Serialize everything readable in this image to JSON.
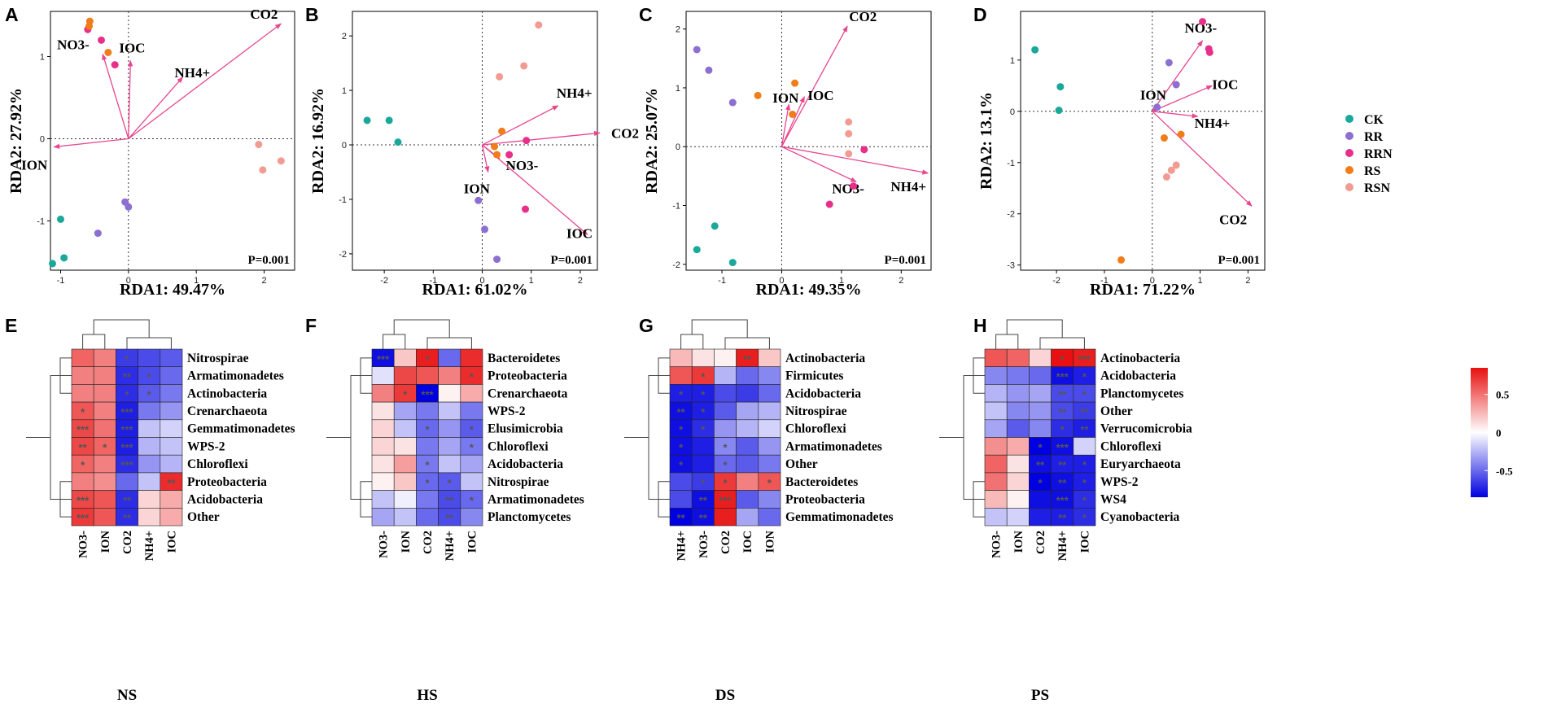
{
  "chart_data": [
    {
      "panel": "A",
      "type": "scatter",
      "xlabel": "RDA1: 49.47%",
      "ylabel": "RDA2: 27.92%",
      "xlim": [
        -1.15,
        2.45
      ],
      "ylim": [
        -1.6,
        1.55
      ],
      "xticks": [
        -1,
        0,
        1,
        2
      ],
      "yticks": [
        -1,
        0,
        1
      ],
      "annotation": "P=0.001",
      "vectors": [
        {
          "name": "CO2",
          "x": 2.25,
          "y": 1.4
        },
        {
          "name": "NH4+",
          "x": 0.8,
          "y": 0.75
        },
        {
          "name": "NO3-",
          "x": -0.38,
          "y": 1.03
        },
        {
          "name": "IOC",
          "x": 0.03,
          "y": 0.95
        },
        {
          "name": "ION",
          "x": -1.1,
          "y": -0.1
        }
      ],
      "points": [
        {
          "group": "CK",
          "x": -1.0,
          "y": -0.98
        },
        {
          "group": "CK",
          "x": -0.95,
          "y": -1.45
        },
        {
          "group": "CK",
          "x": -1.12,
          "y": -1.52
        },
        {
          "group": "RR",
          "x": -0.45,
          "y": -1.15
        },
        {
          "group": "RR",
          "x": -0.05,
          "y": -0.77
        },
        {
          "group": "RR",
          "x": 0.0,
          "y": -0.83
        },
        {
          "group": "RRN",
          "x": -0.2,
          "y": 0.9
        },
        {
          "group": "RRN",
          "x": -0.6,
          "y": 1.33
        },
        {
          "group": "RRN",
          "x": -0.4,
          "y": 1.2
        },
        {
          "group": "RS",
          "x": -0.57,
          "y": 1.43
        },
        {
          "group": "RS",
          "x": -0.58,
          "y": 1.37
        },
        {
          "group": "RS",
          "x": -0.3,
          "y": 1.05
        },
        {
          "group": "RSN",
          "x": 1.92,
          "y": -0.07
        },
        {
          "group": "RSN",
          "x": 1.98,
          "y": -0.38
        },
        {
          "group": "RSN",
          "x": 2.25,
          "y": -0.27
        }
      ]
    },
    {
      "panel": "B",
      "type": "scatter",
      "xlabel": "RDA1: 61.02%",
      "ylabel": "RDA2: 16.92%",
      "xlim": [
        -2.65,
        2.35
      ],
      "ylim": [
        -2.3,
        2.45
      ],
      "xticks": [
        -2,
        -1,
        0,
        1,
        2
      ],
      "yticks": [
        -2,
        -1,
        0,
        1,
        2
      ],
      "annotation": "P=0.001",
      "vectors": [
        {
          "name": "NH4+",
          "x": 1.55,
          "y": 0.72
        },
        {
          "name": "CO2",
          "x": 2.4,
          "y": 0.22
        },
        {
          "name": "NO3-",
          "x": 0.35,
          "y": -0.25
        },
        {
          "name": "ION",
          "x": 0.12,
          "y": -0.5
        },
        {
          "name": "IOC",
          "x": 2.15,
          "y": -1.65
        }
      ],
      "points": [
        {
          "group": "CK",
          "x": -2.35,
          "y": 0.45
        },
        {
          "group": "CK",
          "x": -1.9,
          "y": 0.45
        },
        {
          "group": "CK",
          "x": -1.72,
          "y": 0.05
        },
        {
          "group": "RR",
          "x": -0.08,
          "y": -1.02
        },
        {
          "group": "RR",
          "x": 0.05,
          "y": -1.55
        },
        {
          "group": "RR",
          "x": 0.3,
          "y": -2.1
        },
        {
          "group": "RRN",
          "x": 0.9,
          "y": 0.08
        },
        {
          "group": "RRN",
          "x": 0.88,
          "y": -1.18
        },
        {
          "group": "RRN",
          "x": 0.55,
          "y": -0.18
        },
        {
          "group": "RS",
          "x": 0.4,
          "y": 0.25
        },
        {
          "group": "RS",
          "x": 0.25,
          "y": -0.03
        },
        {
          "group": "RS",
          "x": 0.3,
          "y": -0.18
        },
        {
          "group": "RSN",
          "x": 1.15,
          "y": 2.2
        },
        {
          "group": "RSN",
          "x": 0.85,
          "y": 1.45
        },
        {
          "group": "RSN",
          "x": 0.35,
          "y": 1.25
        }
      ]
    },
    {
      "panel": "C",
      "type": "scatter",
      "xlabel": "RDA1: 49.35%",
      "ylabel": "RDA2: 25.07%",
      "xlim": [
        -1.6,
        2.5
      ],
      "ylim": [
        -2.1,
        2.3
      ],
      "xticks": [
        -1,
        0,
        1,
        2
      ],
      "yticks": [
        -2,
        -1,
        0,
        1,
        2
      ],
      "annotation": "P=0.001",
      "vectors": [
        {
          "name": "CO2",
          "x": 1.1,
          "y": 2.05
        },
        {
          "name": "IOC",
          "x": 0.38,
          "y": 0.85
        },
        {
          "name": "ION",
          "x": 0.12,
          "y": 0.72
        },
        {
          "name": "NO3-",
          "x": 1.25,
          "y": -0.6
        },
        {
          "name": "NH4+",
          "x": 2.45,
          "y": -0.45
        }
      ],
      "points": [
        {
          "group": "CK",
          "x": -1.12,
          "y": -1.35
        },
        {
          "group": "CK",
          "x": -1.42,
          "y": -1.75
        },
        {
          "group": "CK",
          "x": -0.82,
          "y": -1.97
        },
        {
          "group": "RR",
          "x": -1.42,
          "y": 1.65
        },
        {
          "group": "RR",
          "x": -1.22,
          "y": 1.3
        },
        {
          "group": "RR",
          "x": -0.82,
          "y": 0.75
        },
        {
          "group": "RRN",
          "x": 1.38,
          "y": -0.05
        },
        {
          "group": "RRN",
          "x": 1.2,
          "y": -0.67
        },
        {
          "group": "RRN",
          "x": 0.8,
          "y": -0.98
        },
        {
          "group": "RS",
          "x": 0.22,
          "y": 1.08
        },
        {
          "group": "RS",
          "x": -0.4,
          "y": 0.87
        },
        {
          "group": "RS",
          "x": 0.18,
          "y": 0.55
        },
        {
          "group": "RSN",
          "x": 1.12,
          "y": 0.42
        },
        {
          "group": "RSN",
          "x": 1.12,
          "y": 0.22
        },
        {
          "group": "RSN",
          "x": 1.12,
          "y": -0.12
        }
      ]
    },
    {
      "panel": "D",
      "type": "scatter",
      "xlabel": "RDA1: 71.22%",
      "ylabel": "RDA2: 13.1%",
      "xlim": [
        -2.75,
        2.35
      ],
      "ylim": [
        -3.1,
        1.95
      ],
      "xticks": [
        -2,
        -1,
        0,
        1,
        2
      ],
      "yticks": [
        -3,
        -2,
        -1,
        0,
        1
      ],
      "annotation": "P=0.001",
      "vectors": [
        {
          "name": "NO3-",
          "x": 1.05,
          "y": 1.38
        },
        {
          "name": "IOC",
          "x": 1.25,
          "y": 0.5
        },
        {
          "name": "ION",
          "x": 0.12,
          "y": 0.1
        },
        {
          "name": "NH4+",
          "x": 0.95,
          "y": -0.1
        },
        {
          "name": "CO2",
          "x": 2.08,
          "y": -1.85
        }
      ],
      "points": [
        {
          "group": "CK",
          "x": -2.45,
          "y": 1.2
        },
        {
          "group": "CK",
          "x": -1.92,
          "y": 0.48
        },
        {
          "group": "CK",
          "x": -1.95,
          "y": 0.02
        },
        {
          "group": "RR",
          "x": 0.35,
          "y": 0.95
        },
        {
          "group": "RR",
          "x": 0.5,
          "y": 0.52
        },
        {
          "group": "RR",
          "x": 0.1,
          "y": 0.08
        },
        {
          "group": "RRN",
          "x": 1.05,
          "y": 1.75
        },
        {
          "group": "RRN",
          "x": 1.18,
          "y": 1.22
        },
        {
          "group": "RRN",
          "x": 1.2,
          "y": 1.15
        },
        {
          "group": "RS",
          "x": 0.6,
          "y": -0.45
        },
        {
          "group": "RS",
          "x": 0.25,
          "y": -0.52
        },
        {
          "group": "RS",
          "x": -0.65,
          "y": -2.9
        },
        {
          "group": "RSN",
          "x": 0.5,
          "y": -1.05
        },
        {
          "group": "RSN",
          "x": 0.4,
          "y": -1.15
        },
        {
          "group": "RSN",
          "x": 0.3,
          "y": -1.28
        }
      ]
    },
    {
      "panel": "E",
      "type": "heatmap",
      "title": "NS",
      "columns": [
        "NO3-",
        "ION",
        "CO2",
        "NH4+",
        "IOC"
      ],
      "rows": [
        "Nitrospirae",
        "Armatimonadetes",
        "Actinobacteria",
        "Crenarchaeota",
        "Gemmatimonadetes",
        "WPS-2",
        "Chloroflexi",
        "Proteobacteria",
        "Acidobacteria",
        "Other"
      ],
      "values": [
        [
          0.55,
          0.45,
          -0.65,
          -0.6,
          -0.55
        ],
        [
          0.45,
          0.45,
          -0.7,
          -0.6,
          -0.5
        ],
        [
          0.45,
          0.45,
          -0.7,
          -0.55,
          -0.45
        ],
        [
          0.6,
          0.45,
          -0.75,
          -0.45,
          -0.35
        ],
        [
          0.65,
          0.5,
          -0.75,
          -0.2,
          -0.15
        ],
        [
          0.65,
          0.55,
          -0.75,
          -0.25,
          -0.2
        ],
        [
          0.55,
          0.45,
          -0.7,
          -0.35,
          -0.25
        ],
        [
          0.45,
          0.4,
          -0.5,
          -0.2,
          0.75
        ],
        [
          0.65,
          0.6,
          -0.7,
          0.15,
          0.3
        ],
        [
          0.7,
          0.6,
          -0.7,
          0.15,
          0.3
        ]
      ],
      "stars": [
        [
          "",
          "",
          "*",
          "",
          ""
        ],
        [
          "",
          "",
          "**",
          "*",
          ""
        ],
        [
          "",
          "",
          "*",
          "*",
          ""
        ],
        [
          "*",
          "",
          "***",
          "",
          ""
        ],
        [
          "***",
          "",
          "***",
          "",
          ""
        ],
        [
          "**",
          "*",
          "***",
          "",
          ""
        ],
        [
          "*",
          "",
          "***",
          "",
          ""
        ],
        [
          "",
          "",
          "",
          "",
          "**"
        ],
        [
          "***",
          "",
          "**",
          "",
          ""
        ],
        [
          "***",
          "",
          "**",
          "",
          ""
        ]
      ]
    },
    {
      "panel": "F",
      "type": "heatmap",
      "title": "HS",
      "columns": [
        "NO3-",
        "ION",
        "CO2",
        "NH4+",
        "IOC"
      ],
      "rows": [
        "Bacteroidetes",
        "Proteobacteria",
        "Crenarchaeota",
        "WPS-2",
        "Elusimicrobia",
        "Chloroflexi",
        "Acidobacteria",
        "Nitrospirae",
        "Armatimonadetes",
        "Planctomycetes"
      ],
      "values": [
        [
          -0.8,
          0.2,
          0.8,
          -0.5,
          0.75
        ],
        [
          -0.1,
          0.65,
          0.6,
          0.45,
          0.75
        ],
        [
          0.45,
          0.7,
          -0.85,
          0.05,
          0.3
        ],
        [
          0.1,
          -0.3,
          -0.45,
          -0.2,
          -0.45
        ],
        [
          0.15,
          -0.2,
          -0.5,
          -0.35,
          -0.55
        ],
        [
          0.15,
          0.1,
          -0.45,
          -0.3,
          -0.45
        ],
        [
          0.1,
          0.35,
          -0.45,
          -0.2,
          -0.3
        ],
        [
          0.05,
          0.2,
          -0.5,
          -0.55,
          -0.2
        ],
        [
          -0.2,
          -0.05,
          -0.45,
          -0.6,
          -0.5
        ],
        [
          -0.3,
          -0.2,
          -0.5,
          -0.6,
          -0.4
        ]
      ],
      "stars": [
        [
          "***",
          "",
          "*",
          "",
          ""
        ],
        [
          "",
          "",
          "",
          "",
          "*"
        ],
        [
          "",
          "*",
          "***",
          "",
          ""
        ],
        [
          "",
          "",
          "",
          "",
          ""
        ],
        [
          "",
          "",
          "*",
          "",
          "*"
        ],
        [
          "",
          "",
          "",
          "",
          "*"
        ],
        [
          "",
          "",
          "*",
          "",
          ""
        ],
        [
          "",
          "",
          "*",
          "*",
          ""
        ],
        [
          "",
          "",
          "",
          "**",
          "*"
        ],
        [
          "",
          "",
          "",
          "**",
          ""
        ]
      ]
    },
    {
      "panel": "G",
      "type": "heatmap",
      "title": "DS",
      "columns": [
        "NH4+",
        "NO3-",
        "CO2",
        "IOC",
        "ION"
      ],
      "rows": [
        "Actinobacteria",
        "Firmicutes",
        "Acidobacteria",
        "Nitrospirae",
        "Chloroflexi",
        "Armatimonadetes",
        "Other",
        "Bacteroidetes",
        "Proteobacteria",
        "Gemmatimonadetes"
      ],
      "values": [
        [
          0.25,
          0.1,
          0.05,
          0.8,
          0.2
        ],
        [
          0.6,
          0.7,
          -0.25,
          -0.5,
          -0.4
        ],
        [
          -0.75,
          -0.75,
          -0.6,
          -0.65,
          -0.5
        ],
        [
          -0.8,
          -0.75,
          -0.55,
          -0.3,
          -0.25
        ],
        [
          -0.8,
          -0.7,
          -0.35,
          -0.25,
          -0.15
        ],
        [
          -0.8,
          -0.75,
          -0.4,
          -0.55,
          -0.35
        ],
        [
          -0.8,
          -0.75,
          -0.5,
          -0.55,
          -0.45
        ],
        [
          -0.6,
          -0.65,
          0.7,
          0.45,
          0.6
        ],
        [
          -0.6,
          -0.8,
          0.8,
          -0.55,
          -0.4
        ],
        [
          -0.85,
          -0.8,
          0.8,
          -0.3,
          -0.5
        ]
      ],
      "stars": [
        [
          "",
          "",
          "",
          "**",
          ""
        ],
        [
          "",
          "*",
          "",
          "",
          ""
        ],
        [
          "*",
          "*",
          "",
          "",
          ""
        ],
        [
          "**",
          "*",
          "",
          "",
          ""
        ],
        [
          "*",
          "*",
          "",
          "",
          ""
        ],
        [
          "*",
          "",
          "*",
          "",
          ""
        ],
        [
          "*",
          "",
          "*",
          "",
          ""
        ],
        [
          "",
          "*",
          "*",
          "",
          "*"
        ],
        [
          "",
          "**",
          "***",
          "",
          ""
        ],
        [
          "**",
          "**",
          "",
          "",
          ""
        ]
      ]
    },
    {
      "panel": "H",
      "type": "heatmap",
      "title": "PS",
      "columns": [
        "NO3-",
        "ION",
        "CO2",
        "NH4+",
        "IOC"
      ],
      "rows": [
        "Actinobacteria",
        "Acidobacteria",
        "Planctomycetes",
        "Other",
        "Verrucomicrobia",
        "Chloroflexi",
        "Euryarchaeota",
        "WPS-2",
        "WS4",
        "Cyanobacteria"
      ],
      "values": [
        [
          0.6,
          0.55,
          0.15,
          0.85,
          0.8
        ],
        [
          -0.4,
          -0.45,
          -0.5,
          -0.8,
          -0.75
        ],
        [
          -0.25,
          -0.35,
          -0.3,
          -0.6,
          -0.6
        ],
        [
          -0.2,
          -0.4,
          -0.35,
          -0.6,
          -0.65
        ],
        [
          -0.3,
          -0.55,
          -0.4,
          -0.7,
          -0.75
        ],
        [
          0.4,
          0.3,
          -0.85,
          -0.8,
          -0.15
        ],
        [
          0.55,
          0.1,
          -0.8,
          -0.75,
          -0.75
        ],
        [
          0.5,
          0.15,
          -0.85,
          -0.8,
          -0.75
        ],
        [
          0.25,
          0.05,
          -0.8,
          -0.8,
          -0.7
        ],
        [
          -0.2,
          -0.15,
          -0.75,
          -0.75,
          -0.7
        ]
      ],
      "stars": [
        [
          "",
          "",
          "",
          "*",
          "***"
        ],
        [
          "",
          "",
          "",
          "***",
          "*"
        ],
        [
          "",
          "",
          "",
          "**",
          "*"
        ],
        [
          "",
          "",
          "",
          "**",
          "**"
        ],
        [
          "",
          "",
          "",
          "*",
          "**"
        ],
        [
          "",
          "",
          "*",
          "***",
          ""
        ],
        [
          "",
          "",
          "**",
          "**",
          "*"
        ],
        [
          "",
          "",
          "*",
          "**",
          "*"
        ],
        [
          "",
          "",
          "",
          "***",
          "*"
        ],
        [
          "",
          "",
          "",
          "**",
          "*"
        ]
      ]
    }
  ],
  "legend": {
    "items": [
      {
        "label": "CK",
        "color": "#1aa89a"
      },
      {
        "label": "RR",
        "color": "#8c6fd1"
      },
      {
        "label": "RRN",
        "color": "#e8308a"
      },
      {
        "label": "RS",
        "color": "#f07d1a"
      },
      {
        "label": "RSN",
        "color": "#f29b92"
      }
    ]
  },
  "colorbar": {
    "min": -0.85,
    "max": 0.85,
    "ticks": [
      {
        "value": 0.5,
        "label": "0.5"
      },
      {
        "value": 0,
        "label": "0"
      },
      {
        "value": -0.5,
        "label": "-0.5"
      }
    ],
    "low_color": "#0000e0",
    "mid_color": "#ffffff",
    "high_color": "#e81010"
  },
  "vector_color": "#e8468f"
}
